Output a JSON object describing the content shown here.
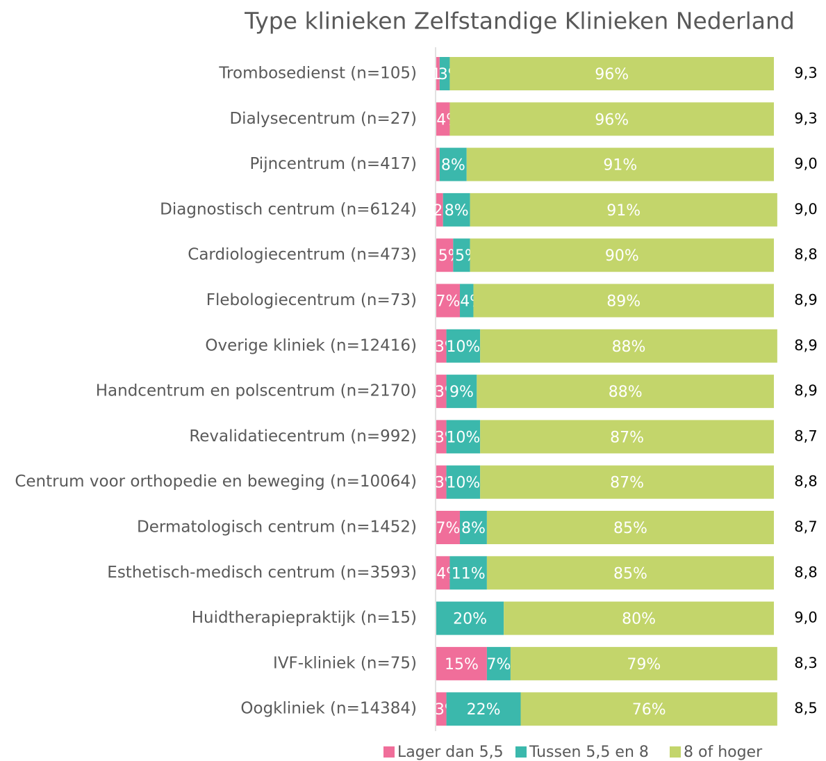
{
  "chart_data": {
    "type": "stacked-barh",
    "title": "Type klinieken Zelfstandige Klinieken Nederland",
    "categories": [
      "Trombosedienst (n=105)",
      "Dialysecentrum (n=27)",
      "Pijncentrum (n=417)",
      "Diagnostisch centrum (n=6124)",
      "Cardiologiecentrum (n=473)",
      "Flebologiecentrum (n=73)",
      "Overige kliniek (n=12416)",
      "Handcentrum en polscentrum (n=2170)",
      "Revalidatiecentrum (n=992)",
      "Centrum voor orthopedie en beweging (n=10064)",
      "Dermatologisch centrum (n=1452)",
      "Esthetisch-medisch centrum (n=3593)",
      "Huidtherapiepraktijk (n=15)",
      "IVF-kliniek (n=75)",
      "Oogkliniek (n=14384)"
    ],
    "series": [
      {
        "name": "Lager dan 5,5",
        "color": "#f06e9a",
        "values": [
          1,
          4,
          1,
          2,
          5,
          7,
          3,
          3,
          3,
          3,
          7,
          4,
          0,
          15,
          3
        ],
        "value_labels": [
          "1%",
          "4%",
          null,
          "2%",
          "5%",
          "7%",
          "3%",
          "3%",
          "3%",
          "3%",
          "7%",
          "4%",
          null,
          "15%",
          "3%"
        ]
      },
      {
        "name": "Tussen 5,5 en 8",
        "color": "#3bb8ac",
        "values": [
          3,
          0,
          8,
          8,
          5,
          4,
          10,
          9,
          10,
          10,
          8,
          11,
          20,
          7,
          22
        ],
        "value_labels": [
          "3%",
          null,
          "8%",
          "8%",
          "5%",
          "4%",
          "10%",
          "9%",
          "10%",
          "10%",
          "8%",
          "11%",
          "20%",
          "7%",
          "22%"
        ]
      },
      {
        "name": "8 of hoger",
        "color": "#c3d56b",
        "values": [
          96,
          96,
          91,
          91,
          90,
          89,
          88,
          88,
          87,
          87,
          85,
          85,
          80,
          79,
          76
        ],
        "value_labels": [
          "96%",
          "96%",
          "91%",
          "91%",
          "90%",
          "89%",
          "88%",
          "88%",
          "87%",
          "87%",
          "85%",
          "85%",
          "80%",
          "79%",
          "76%"
        ]
      }
    ],
    "scores": [
      "9,3",
      "9,3",
      "9,0",
      "9,0",
      "8,8",
      "8,9",
      "8,9",
      "8,9",
      "8,7",
      "8,8",
      "8,7",
      "8,8",
      "9,0",
      "8,3",
      "8,5"
    ],
    "xlim": [
      0,
      100
    ]
  }
}
